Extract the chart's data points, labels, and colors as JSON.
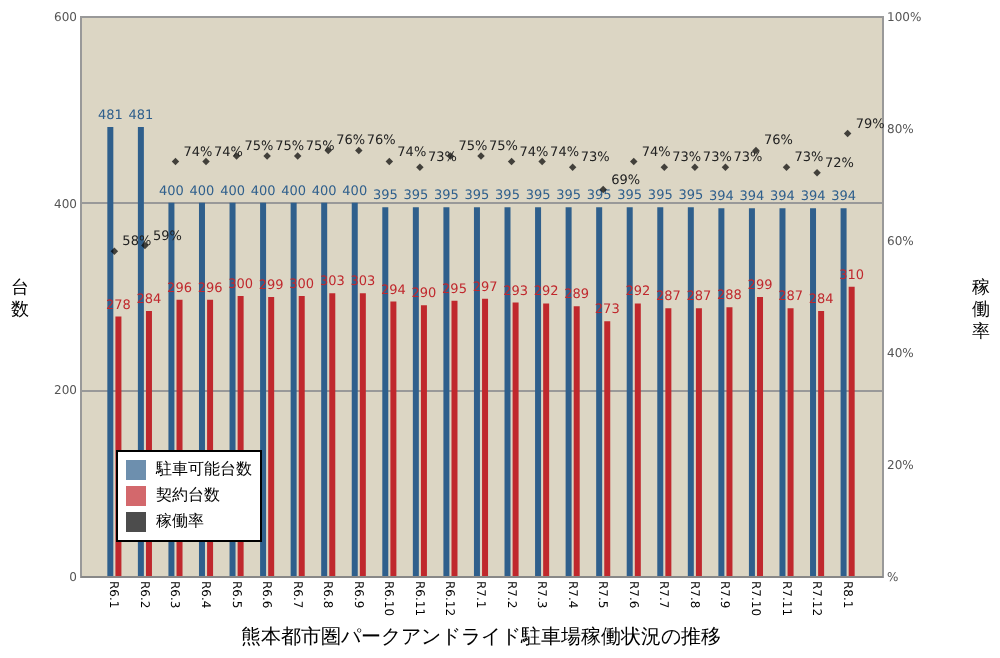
{
  "chart_data": {
    "type": "bar",
    "title": "熊本都市圏パークアンドライド駐車場稼働状況の推移",
    "ylabel": "台数",
    "y2label": "稼働率",
    "categories": [
      "R6.1",
      "R6.2",
      "R6.3",
      "R6.4",
      "R6.5",
      "R6.6",
      "R6.7",
      "R6.8",
      "R6.9",
      "R6.10",
      "R6.11",
      "R6.12",
      "R7.1",
      "R7.2",
      "R7.3",
      "R7.4",
      "R7.5",
      "R7.6",
      "R7.7",
      "R7.8",
      "R7.9",
      "R7.10",
      "R7.11",
      "R7.12",
      "R8.1"
    ],
    "series": [
      {
        "name": "駐車可能台数",
        "color": "#2f5f8c",
        "values": [
          481,
          481,
          400,
          400,
          400,
          400,
          400,
          400,
          400,
          395,
          395,
          395,
          395,
          395,
          395,
          395,
          395,
          395,
          395,
          395,
          394,
          394,
          394,
          394,
          394
        ]
      },
      {
        "name": "契約台数",
        "color": "#c0282d",
        "values": [
          278,
          284,
          296,
          296,
          300,
          299,
          300,
          303,
          303,
          294,
          290,
          295,
          297,
          293,
          292,
          289,
          273,
          292,
          287,
          287,
          288,
          299,
          287,
          284,
          310
        ]
      },
      {
        "name": "稼働率",
        "color": "#000000",
        "type": "scatter",
        "axis": "y2",
        "marker": "diamond",
        "values": [
          58,
          59,
          74,
          74,
          75,
          75,
          75,
          76,
          76,
          74,
          73,
          75,
          75,
          74,
          74,
          73,
          69,
          74,
          73,
          73,
          73,
          76,
          73,
          72,
          79
        ],
        "value_labels": [
          "58%",
          "59%",
          "74%",
          "74%",
          "75%",
          "75%",
          "75%",
          "76%",
          "76%",
          "74%",
          "73%",
          "75%",
          "75%",
          "74%",
          "74%",
          "73%",
          "69%",
          "74%",
          "73%",
          "73%",
          "73%",
          "76%",
          "73%",
          "72%",
          "79%"
        ]
      }
    ],
    "data_labels": true,
    "ylim": [
      0,
      600
    ],
    "yticks": [
      0,
      200,
      400,
      600
    ],
    "y2lim": [
      0,
      100
    ],
    "y2ticks": [
      {
        "value": 0,
        "label": "%"
      },
      {
        "value": 20,
        "label": "20%"
      },
      {
        "value": 40,
        "label": "40%"
      },
      {
        "value": 60,
        "label": "60%"
      },
      {
        "value": 80,
        "label": "80%"
      },
      {
        "value": 100,
        "label": "100%"
      }
    ],
    "grid": "y",
    "legend": "bottom left"
  }
}
